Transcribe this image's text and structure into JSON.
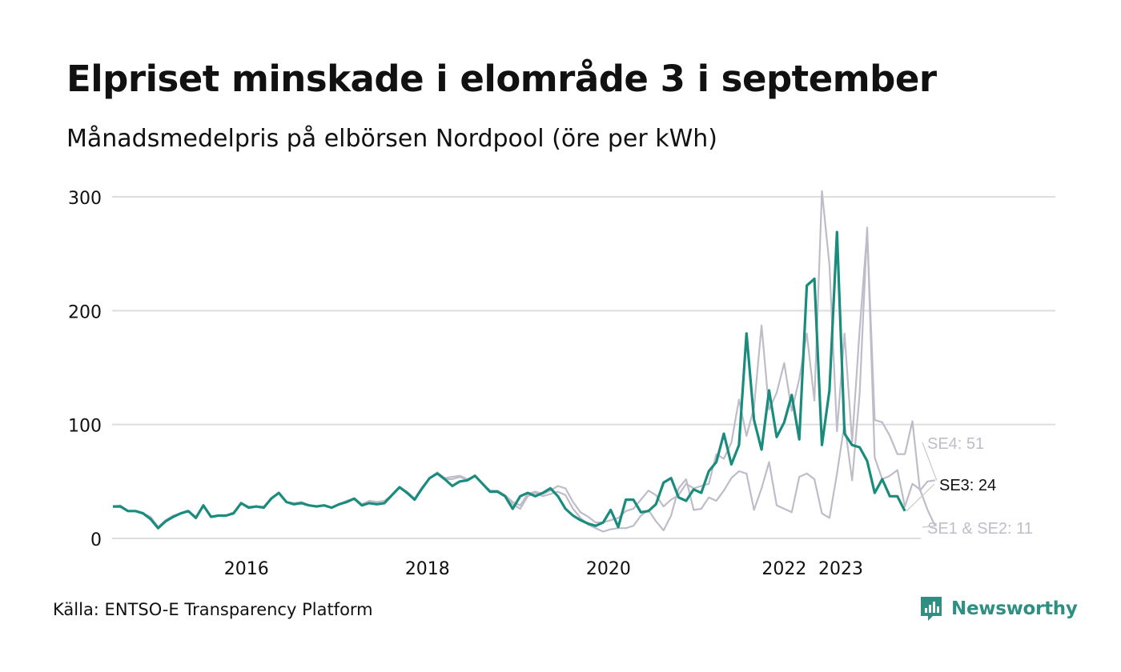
{
  "title": "Elpriset minskade i elområde 3 i september",
  "subtitle": "Månadsmedelpris på elbörsen Nordpool (öre per kWh)",
  "source": "Källa: ENTSO-E Transparency Platform",
  "brand": "Newsworthy",
  "colors": {
    "se3": "#1a8c7d",
    "other": "#bfbcc9",
    "grid": "#dddddd",
    "brand": "#2f8f82"
  },
  "chart_data": {
    "type": "line",
    "x_axis": {
      "start": "2015-01",
      "unit": "month",
      "tick_labels": [
        "2016",
        "2018",
        "2020",
        "2022",
        "2023"
      ]
    },
    "ylim": [
      0,
      300
    ],
    "yticks": [
      0,
      100,
      200,
      300
    ],
    "ytick_labels": [
      "0",
      "100",
      "200",
      "300"
    ],
    "series": [
      {
        "name": "SE1 & SE2",
        "label": "SE1 & SE2: 11",
        "role": "other",
        "values": [
          28,
          28,
          24,
          24,
          22,
          18,
          10,
          16,
          20,
          22,
          24,
          19,
          28,
          19,
          20,
          20,
          22,
          31,
          27,
          28,
          27,
          35,
          40,
          32,
          30,
          31,
          29,
          28,
          29,
          27,
          30,
          32,
          35,
          29,
          31,
          30,
          31,
          38,
          45,
          40,
          34,
          44,
          53,
          57,
          52,
          52,
          54,
          51,
          55,
          48,
          41,
          41,
          37,
          30,
          26,
          37,
          40,
          37,
          39,
          41,
          38,
          26,
          18,
          12,
          9,
          6,
          8,
          9,
          9,
          11,
          20,
          25,
          15,
          7,
          20,
          44,
          52,
          25,
          26,
          36,
          33,
          42,
          53,
          59,
          57,
          25,
          44,
          67,
          29,
          26,
          23,
          54,
          57,
          52,
          22,
          18,
          57,
          101,
          51,
          127,
          273,
          71,
          52,
          55,
          60,
          28,
          48,
          43,
          25,
          11
        ],
        "x_offset": 0
      },
      {
        "name": "SE4",
        "label": "SE4: 51",
        "role": "other",
        "values": [
          28,
          29,
          24,
          24,
          22,
          19,
          10,
          16,
          20,
          22,
          24,
          19,
          28,
          19,
          20,
          20,
          23,
          31,
          28,
          28,
          28,
          35,
          40,
          32,
          31,
          32,
          29,
          28,
          29,
          27,
          30,
          33,
          35,
          30,
          33,
          32,
          33,
          38,
          45,
          41,
          35,
          45,
          53,
          58,
          53,
          54,
          55,
          52,
          55,
          48,
          42,
          42,
          38,
          32,
          29,
          39,
          41,
          39,
          42,
          46,
          44,
          32,
          23,
          19,
          14,
          14,
          16,
          18,
          24,
          26,
          34,
          42,
          38,
          28,
          34,
          38,
          48,
          44,
          46,
          48,
          74,
          70,
          84,
          122,
          90,
          115,
          187,
          113,
          128,
          154,
          112,
          140,
          180,
          121,
          305,
          240,
          94,
          180,
          85,
          183,
          270,
          104,
          102,
          90,
          74,
          74,
          103,
          42,
          50,
          51
        ],
        "x_offset": 0
      },
      {
        "name": "SE3",
        "label": "SE3: 24",
        "role": "highlight",
        "values": [
          28,
          28,
          24,
          24,
          22,
          17,
          9,
          15,
          19,
          22,
          24,
          18,
          29,
          19,
          20,
          20,
          22,
          31,
          27,
          28,
          27,
          35,
          40,
          32,
          30,
          31,
          29,
          28,
          29,
          27,
          30,
          32,
          35,
          29,
          31,
          30,
          31,
          38,
          45,
          40,
          34,
          44,
          53,
          57,
          52,
          46,
          50,
          51,
          55,
          48,
          41,
          41,
          37,
          26,
          37,
          40,
          37,
          40,
          44,
          37,
          26,
          20,
          16,
          13,
          11,
          14,
          25,
          10,
          34,
          34,
          23,
          24,
          30,
          49,
          53,
          36,
          33,
          43,
          40,
          59,
          67,
          92,
          65,
          82,
          180,
          104,
          78,
          130,
          89,
          102,
          126,
          87,
          222,
          228,
          82,
          130,
          269,
          92,
          82,
          80,
          68,
          40,
          52,
          37,
          37,
          24
        ],
        "x_offset": 0
      }
    ]
  }
}
